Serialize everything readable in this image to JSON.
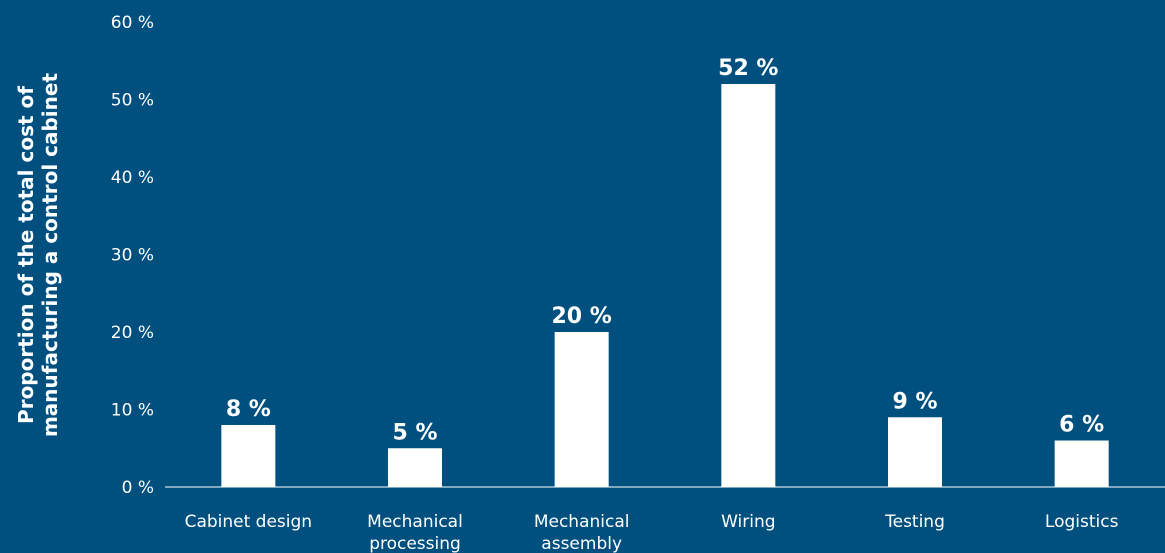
{
  "chart_data": {
    "type": "bar",
    "categories": [
      [
        "Cabinet design"
      ],
      [
        "Mechanical",
        "processing"
      ],
      [
        "Mechanical",
        "assembly"
      ],
      [
        "Wiring"
      ],
      [
        "Testing"
      ],
      [
        "Logistics"
      ]
    ],
    "values": [
      8,
      5,
      20,
      52,
      9,
      6
    ],
    "data_labels": [
      "8 %",
      "5 %",
      "20 %",
      "52 %",
      "9 %",
      "6 %"
    ],
    "ylabel": [
      "Proportion of the total cost of",
      "manufacturing a control cabinet"
    ],
    "ylim": [
      0,
      60
    ],
    "yticks": [
      0,
      10,
      20,
      30,
      40,
      50,
      60
    ],
    "ytick_labels": [
      "0 %",
      "10 %",
      "20 %",
      "30 %",
      "40 %",
      "50 %",
      "60 %"
    ],
    "grid": false,
    "legend": "none",
    "colors": {
      "background": "#00507f",
      "bar": "#ffffff",
      "text": "#ffffff",
      "axis": "#ffffff"
    }
  }
}
